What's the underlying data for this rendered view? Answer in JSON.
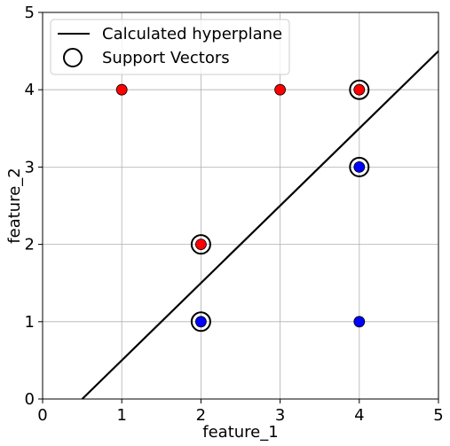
{
  "chart_data": {
    "type": "scatter",
    "title": "",
    "xlabel": "feature_1",
    "ylabel": "feature_2",
    "xlim": [
      0,
      5
    ],
    "ylim": [
      0,
      5
    ],
    "xticks": [
      "0",
      "1",
      "2",
      "3",
      "4",
      "5"
    ],
    "yticks": [
      "0",
      "1",
      "2",
      "3",
      "4",
      "5"
    ],
    "grid": true,
    "legend_position": "top-left",
    "colors": {
      "class_red": "#ff0000",
      "class_blue": "#0000ff",
      "hyperplane": "#000000",
      "grid": "#b0b0b0"
    },
    "series": [
      {
        "color": "#ff0000",
        "points": [
          {
            "x": 1,
            "y": 4
          },
          {
            "x": 3,
            "y": 4
          },
          {
            "x": 4,
            "y": 4
          },
          {
            "x": 2,
            "y": 2
          }
        ]
      },
      {
        "color": "#0000ff",
        "points": [
          {
            "x": 4,
            "y": 3
          },
          {
            "x": 2,
            "y": 1
          },
          {
            "x": 4,
            "y": 1
          }
        ]
      }
    ],
    "support_vectors": [
      {
        "x": 4,
        "y": 4
      },
      {
        "x": 4,
        "y": 3
      },
      {
        "x": 2,
        "y": 2
      },
      {
        "x": 2,
        "y": 1
      }
    ],
    "hyperplane": {
      "name": "Calculated hyperplane",
      "points": [
        {
          "x": 0.5,
          "y": 0
        },
        {
          "x": 5,
          "y": 4.5
        }
      ]
    },
    "legend": [
      {
        "label": "Calculated hyperplane",
        "marker": "line"
      },
      {
        "label": "Support Vectors",
        "marker": "circle"
      }
    ]
  }
}
